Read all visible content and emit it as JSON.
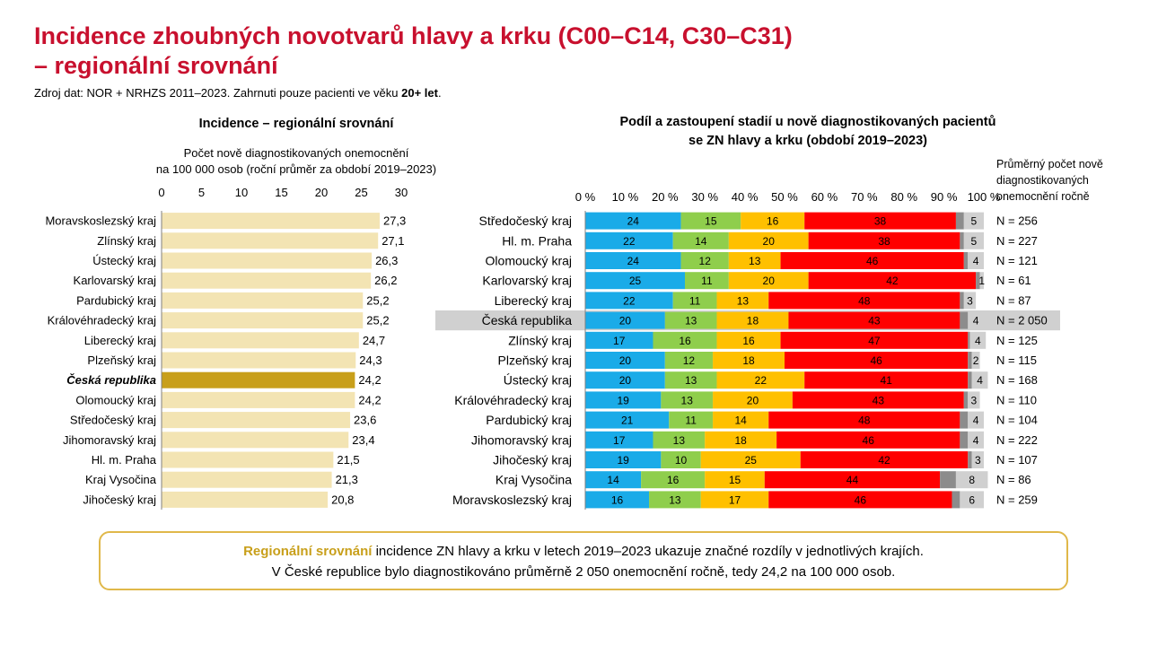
{
  "title_line1": "Incidence zhoubných novotvarů hlavy a krku (C00–C14, C30–C31)",
  "title_line2": "– regionální srovnání",
  "source_text": "Zdroj dat: NOR + NRHZS 2011–2023. Zahrnuti pouze pacienti ve věku ",
  "source_bold": "20+ let",
  "source_end": ".",
  "colors": {
    "title": "#c8102e",
    "incidence_bar": "#f3e4b3",
    "incidence_highlight": "#c89f1a",
    "stage_I": "#1aabe8",
    "stage_II": "#8fce4c",
    "stage_III": "#ffc000",
    "stage_IV": "#ff0000",
    "stage_unknown_dark": "#8c8c8c",
    "stage_unknown_light": "#d0d0d0",
    "highlight_row": "#d0d0d0",
    "callout_border": "#e0b84a"
  },
  "chart_data": [
    {
      "type": "bar",
      "orientation": "horizontal",
      "title": "Incidence – regionální srovnání",
      "xlabel_line1": "Počet nově diagnostikovaných onemocnění",
      "xlabel_line2": "na 100 000 osob (roční průměr za období 2019–2023)",
      "xlim": [
        0,
        30
      ],
      "ticks": [
        "0",
        "5",
        "10",
        "15",
        "20",
        "25",
        "30"
      ],
      "highlight": "Česká republika",
      "categories": [
        "Moravskoslezský kraj",
        "Zlínský kraj",
        "Ústecký kraj",
        "Karlovarský kraj",
        "Pardubický kraj",
        "Královéhradecký kraj",
        "Liberecký kraj",
        "Plzeňský kraj",
        "Česká republika",
        "Olomoucký kraj",
        "Středočeský kraj",
        "Jihomoravský kraj",
        "Hl. m. Praha",
        "Kraj Vysočina",
        "Jihočeský kraj"
      ],
      "values": [
        27.3,
        27.1,
        26.3,
        26.2,
        25.2,
        25.2,
        24.7,
        24.3,
        24.2,
        24.2,
        23.6,
        23.4,
        21.5,
        21.3,
        20.8
      ],
      "value_labels": [
        "27,3",
        "27,1",
        "26,3",
        "26,2",
        "25,2",
        "25,2",
        "24,7",
        "24,3",
        "24,2",
        "24,2",
        "23,6",
        "23,4",
        "21,5",
        "21,3",
        "20,8"
      ]
    },
    {
      "type": "bar",
      "orientation": "horizontal",
      "stacked": "percent",
      "title_line1": "Podíl a zastoupení stadií u nově diagnostikovaných pacientů",
      "title_line2": "se ZN hlavy a krku (období 2019–2023)",
      "xlim": [
        0,
        100
      ],
      "ticks": [
        "0 %",
        "10 %",
        "20 %",
        "30 %",
        "40 %",
        "50 %",
        "60 %",
        "70 %",
        "80 %",
        "90 %",
        "100 %"
      ],
      "n_header_line1": "Průměrný počet nově",
      "n_header_line2": "diagnostikovaných",
      "n_header_line3": "onemocnění ročně",
      "highlight": "Česká republika",
      "categories": [
        "Středočeský kraj",
        "Hl. m. Praha",
        "Olomoucký kraj",
        "Karlovarský kraj",
        "Liberecký kraj",
        "Česká republika",
        "Zlínský kraj",
        "Plzeňský kraj",
        "Ústecký kraj",
        "Královéhradecký kraj",
        "Pardubický kraj",
        "Jihomoravský kraj",
        "Jihočeský kraj",
        "Kraj Vysočina",
        "Moravskoslezský kraj"
      ],
      "series": [
        {
          "values": [
            24,
            22,
            24,
            25,
            22,
            20,
            17,
            20,
            20,
            19,
            21,
            17,
            19,
            14,
            16
          ]
        },
        {
          "values": [
            15,
            14,
            12,
            11,
            11,
            13,
            16,
            12,
            13,
            13,
            11,
            13,
            10,
            16,
            13
          ]
        },
        {
          "values": [
            16,
            20,
            13,
            20,
            13,
            18,
            16,
            18,
            22,
            20,
            14,
            18,
            25,
            15,
            17
          ]
        },
        {
          "values": [
            38,
            38,
            46,
            42,
            48,
            43,
            47,
            46,
            41,
            43,
            48,
            46,
            42,
            44,
            46
          ]
        },
        {
          "values": [
            2,
            1,
            1,
            1,
            1,
            2,
            0.5,
            1,
            1,
            1,
            2,
            2,
            1,
            4,
            2
          ]
        },
        {
          "values": [
            5,
            5,
            4,
            1,
            3,
            4,
            4,
            2,
            4,
            3,
            4,
            4,
            3,
            8,
            6
          ]
        }
      ],
      "n_labels": [
        "N = 256",
        "N = 227",
        "N = 121",
        "N = 61",
        "N = 87",
        "N = 2 050",
        "N = 125",
        "N = 115",
        "N = 168",
        "N = 110",
        "N = 104",
        "N = 222",
        "N = 107",
        "N = 86",
        "N = 259"
      ]
    }
  ],
  "callout": {
    "highlight": "Regionální srovnání",
    "rest1": " incidence ZN hlavy a krku v letech 2019–2023 ukazuje značné rozdíly v jednotlivých krajích.",
    "line2": "V České republice bylo diagnostikováno průměrně 2 050 onemocnění ročně, tedy 24,2 na 100 000 osob."
  }
}
